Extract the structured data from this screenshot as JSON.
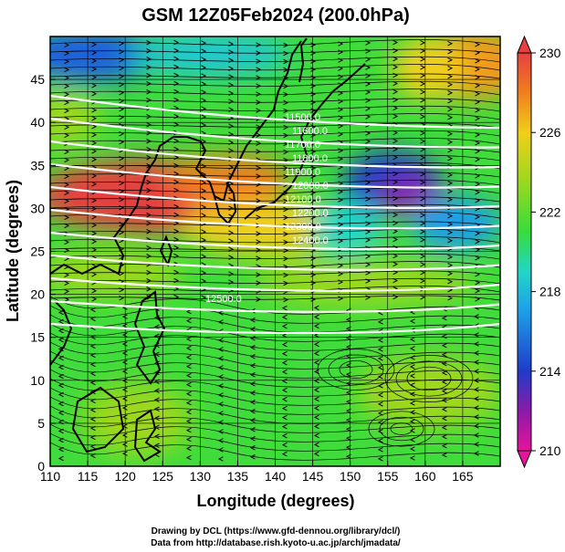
{
  "figure": {
    "title": "GSM 12Z05Feb2024 (200.0hPa)",
    "xlabel": "Longitude (degrees)",
    "ylabel": "Latitude  (degrees)",
    "credit_line1": "Drawing by DCL (https://www.gfd-dennou.org/library/dcl/)",
    "credit_line2": "Data from http://database.rish.kyoto-u.ac.jp/arch/jmadata/"
  },
  "map": {
    "lon_range": [
      110,
      170
    ],
    "lat_range": [
      0,
      50
    ],
    "x_ticks": [
      "110",
      "115",
      "120",
      "125",
      "130",
      "135",
      "140",
      "145",
      "150",
      "155",
      "160",
      "165"
    ],
    "y_ticks": [
      "0",
      "5",
      "10",
      "15",
      "20",
      "25",
      "30",
      "35",
      "40",
      "45"
    ],
    "gridlines": "every 5 degrees",
    "contour_labels": [
      "11500.0",
      "11600.0",
      "11700.0",
      "11800.0",
      "11900.0",
      "12000.0",
      "12100.0",
      "12200.0",
      "12300.0",
      "12400.0",
      "12500.0"
    ]
  },
  "colorbar": {
    "tick_labels": [
      "230",
      "226",
      "222",
      "218",
      "214",
      "210"
    ],
    "range": [
      210,
      230
    ],
    "colors": [
      "#e6139c",
      "#8c1aa8",
      "#1f3cc8",
      "#1e9ee8",
      "#22d6c8",
      "#36dc3c",
      "#9ed81e",
      "#f0cf1a",
      "#f07f1e",
      "#e64040"
    ]
  }
}
